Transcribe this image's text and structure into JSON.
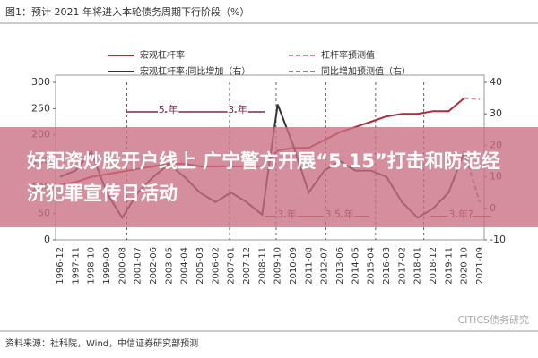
{
  "chart_data": {
    "type": "line",
    "title": "图1：预计 2021 年将进入本轮债务周期下行阶段（%）",
    "source": "资料来源：社科院，Wind，中信证券研究部预测",
    "watermark": "CITICS债务研究",
    "categories": [
      "1996-12",
      "1997-11",
      "1998-10",
      "1999-09",
      "2000-08",
      "2001-07",
      "2002-06",
      "2003-05",
      "2004-04",
      "2005-03",
      "2006-02",
      "2007-01",
      "2007-12",
      "2008-11",
      "2009-10",
      "2010-09",
      "2011-08",
      "2012-07",
      "2013-06",
      "2014-05",
      "2015-04",
      "2016-03",
      "2017-02",
      "2018-01",
      "2018-12",
      "2019-11",
      "2020-10",
      "2021-09"
    ],
    "series": [
      {
        "name": "宏观杠杆率",
        "color": "#b22a3a",
        "dash": false,
        "values": [
          105,
          110,
          120,
          125,
          130,
          135,
          140,
          145,
          145,
          140,
          140,
          140,
          140,
          140,
          170,
          175,
          175,
          190,
          205,
          215,
          225,
          235,
          240,
          240,
          245,
          245,
          270,
          null
        ]
      },
      {
        "name": "杠杆率预测值",
        "color": "#e0899a",
        "dash": true,
        "values": [
          null,
          null,
          null,
          null,
          null,
          null,
          null,
          null,
          null,
          null,
          null,
          null,
          null,
          null,
          null,
          null,
          null,
          null,
          null,
          null,
          null,
          null,
          null,
          null,
          null,
          null,
          270,
          268
        ]
      },
      {
        "name": "宏观杠杆率:同比增加（右）",
        "color": "#333333",
        "dash": false,
        "axis": "y2",
        "values": [
          10,
          12,
          18,
          5,
          -3,
          5,
          10,
          14,
          10,
          5,
          2,
          5,
          2,
          -2,
          33,
          20,
          5,
          12,
          15,
          12,
          12,
          10,
          2,
          -3,
          0,
          5,
          18,
          null
        ]
      },
      {
        "name": "同比增加预测值（右）",
        "color": "#888888",
        "dash": true,
        "axis": "y2",
        "values": [
          null,
          null,
          null,
          null,
          null,
          null,
          null,
          null,
          null,
          null,
          null,
          null,
          null,
          null,
          null,
          null,
          null,
          null,
          null,
          null,
          null,
          null,
          null,
          null,
          null,
          null,
          18,
          2
        ]
      }
    ],
    "ylim": [
      0,
      300
    ],
    "yticks": [
      0,
      50,
      100,
      150,
      200,
      250,
      300
    ],
    "y2lim": [
      -10,
      40
    ],
    "y2ticks": [
      -10,
      0,
      10,
      20,
      30,
      40
    ],
    "annotations": [
      "5 年",
      "3 年",
      "3 年",
      "3.5 年",
      "3 年?"
    ]
  },
  "banner": {
    "text": "好配资炒股开户线上 广宁警方开展“5.15”打击和防范经济犯罪宣传日活动"
  }
}
